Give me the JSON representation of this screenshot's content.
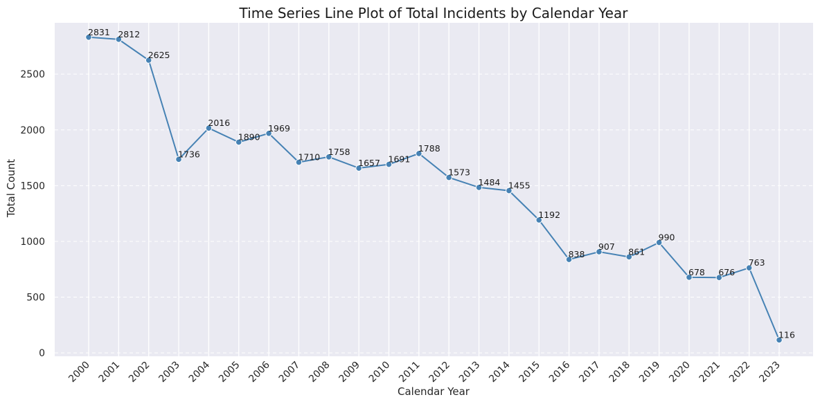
{
  "chart_data": {
    "type": "line",
    "title": "Time Series Line Plot of Total Incidents by Calendar Year",
    "xlabel": "Calendar Year",
    "ylabel": "Total Count",
    "x": [
      "2000",
      "2001",
      "2002",
      "2003",
      "2004",
      "2005",
      "2006",
      "2007",
      "2008",
      "2009",
      "2010",
      "2011",
      "2012",
      "2013",
      "2014",
      "2015",
      "2016",
      "2017",
      "2018",
      "2019",
      "2020",
      "2021",
      "2022",
      "2023"
    ],
    "values": [
      2831,
      2812,
      2625,
      1736,
      2016,
      1890,
      1969,
      1710,
      1758,
      1657,
      1691,
      1788,
      1573,
      1484,
      1455,
      1192,
      838,
      907,
      861,
      990,
      678,
      676,
      763,
      116
    ],
    "yticks": [
      0,
      500,
      1000,
      1500,
      2000,
      2500
    ],
    "ylim": [
      -30,
      2960
    ],
    "grid": true,
    "grid_style": "vertical solid white, horizontal dashed",
    "data_labels": true,
    "colors": {
      "line": "#4682b4",
      "marker_edge": "#ffffff",
      "plot_background": "#eaeaf2",
      "grid": "#ffffff"
    }
  }
}
